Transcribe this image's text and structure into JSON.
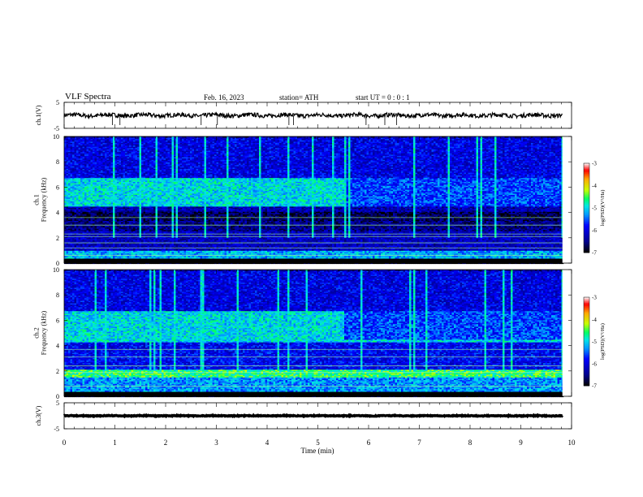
{
  "header": {
    "title": "VLF  Spectra",
    "date": "Feb. 16, 2023",
    "station": "station= ATH",
    "start": "start  UT  =   0 : 0  : 1"
  },
  "colors": {
    "waveform": "#000000",
    "background": "#ffffff",
    "colormap": [
      "#000000",
      "#00008b",
      "#0000ff",
      "#0096ff",
      "#00e6e6",
      "#00ff64",
      "#c8ff00",
      "#ffaa00",
      "#ff0000",
      "#ffffff"
    ]
  },
  "chart_data": [
    {
      "type": "line",
      "name": "ch1-waveform",
      "ylabel": "ch.1(V)",
      "ylim": [
        -5,
        5
      ],
      "yticks": [
        "5",
        "-5"
      ],
      "xlim": [
        0,
        10
      ],
      "baseline_v": 0,
      "noise_amplitude_v": 0.8,
      "data_end_min": 9.82,
      "spikes_min": [
        0.95,
        1.1,
        2.7,
        3.02,
        4.43,
        4.52,
        5.95,
        6.32,
        6.55
      ]
    },
    {
      "type": "heatmap",
      "name": "ch1-spectrogram",
      "ylabel": "ch.1\nFrequency  (kHz)",
      "ylim": [
        0,
        10
      ],
      "yticks": [
        "0",
        "2",
        "4",
        "6",
        "8",
        "10"
      ],
      "xlim": [
        0,
        10
      ],
      "data_end_min": 9.82,
      "colorbar": {
        "label": "log(PSD)(V²/Hz)",
        "range": [
          -7,
          -3
        ],
        "ticks": [
          "-3",
          "-4",
          "-5",
          "-6",
          "-7"
        ]
      },
      "bands": [
        {
          "fmin": 0,
          "fmax": 0.35,
          "level": -7
        },
        {
          "fmin": 0.35,
          "fmax": 1.0,
          "level": -5.2
        },
        {
          "fmin": 1.0,
          "fmax": 2.6,
          "level": -6.2
        },
        {
          "fmin": 2.6,
          "fmax": 3.4,
          "level": -6.5
        },
        {
          "fmin": 3.4,
          "fmax": 4.1,
          "level": -6.7
        },
        {
          "fmin": 4.1,
          "fmax": 4.5,
          "level": -6.3
        },
        {
          "fmin": 4.5,
          "fmax": 6.8,
          "level": -5.0
        },
        {
          "fmin": 6.8,
          "fmax": 10,
          "level": -6.0
        }
      ],
      "lines_khz": [
        0.6,
        1.2,
        1.6,
        2.1,
        2.3,
        3.0,
        3.6
      ],
      "emission_fade_min": 5.5
    },
    {
      "type": "heatmap",
      "name": "ch2-spectrogram",
      "ylabel": "ch.2\nFrequency  (kHz)",
      "ylim": [
        0,
        10
      ],
      "yticks": [
        "0",
        "2",
        "4",
        "6",
        "8",
        "10"
      ],
      "xlim": [
        0,
        10
      ],
      "data_end_min": 9.82,
      "colorbar": {
        "label": "log(PSD)(V²/Hz)",
        "range": [
          -7,
          -3
        ],
        "ticks": [
          "-3",
          "-4",
          "-5",
          "-6",
          "-7"
        ]
      },
      "bands": [
        {
          "fmin": 0,
          "fmax": 0.35,
          "level": -7
        },
        {
          "fmin": 0.35,
          "fmax": 1.5,
          "level": -5.3
        },
        {
          "fmin": 1.5,
          "fmax": 2.2,
          "level": -4.6
        },
        {
          "fmin": 2.2,
          "fmax": 4.3,
          "level": -5.9
        },
        {
          "fmin": 4.3,
          "fmax": 6.8,
          "level": -5.0
        },
        {
          "fmin": 6.8,
          "fmax": 10,
          "level": -6.0
        }
      ],
      "lines_khz": [
        0.8,
        1.9,
        2.4,
        3.1,
        3.7
      ],
      "emission_fade_min": 5.5
    },
    {
      "type": "line",
      "name": "ch3-waveform",
      "ylabel": "ch.3(V)",
      "ylim": [
        -5,
        5
      ],
      "yticks": [
        "5",
        "-5"
      ],
      "xlim": [
        0,
        10
      ],
      "baseline_v": 0,
      "noise_amplitude_v": 0.15,
      "data_end_min": 9.82,
      "spikes_min": []
    }
  ],
  "xaxis": {
    "label": "Time  (min)",
    "ticks": [
      "0",
      "1",
      "2",
      "3",
      "4",
      "5",
      "6",
      "7",
      "8",
      "9",
      "10"
    ]
  }
}
